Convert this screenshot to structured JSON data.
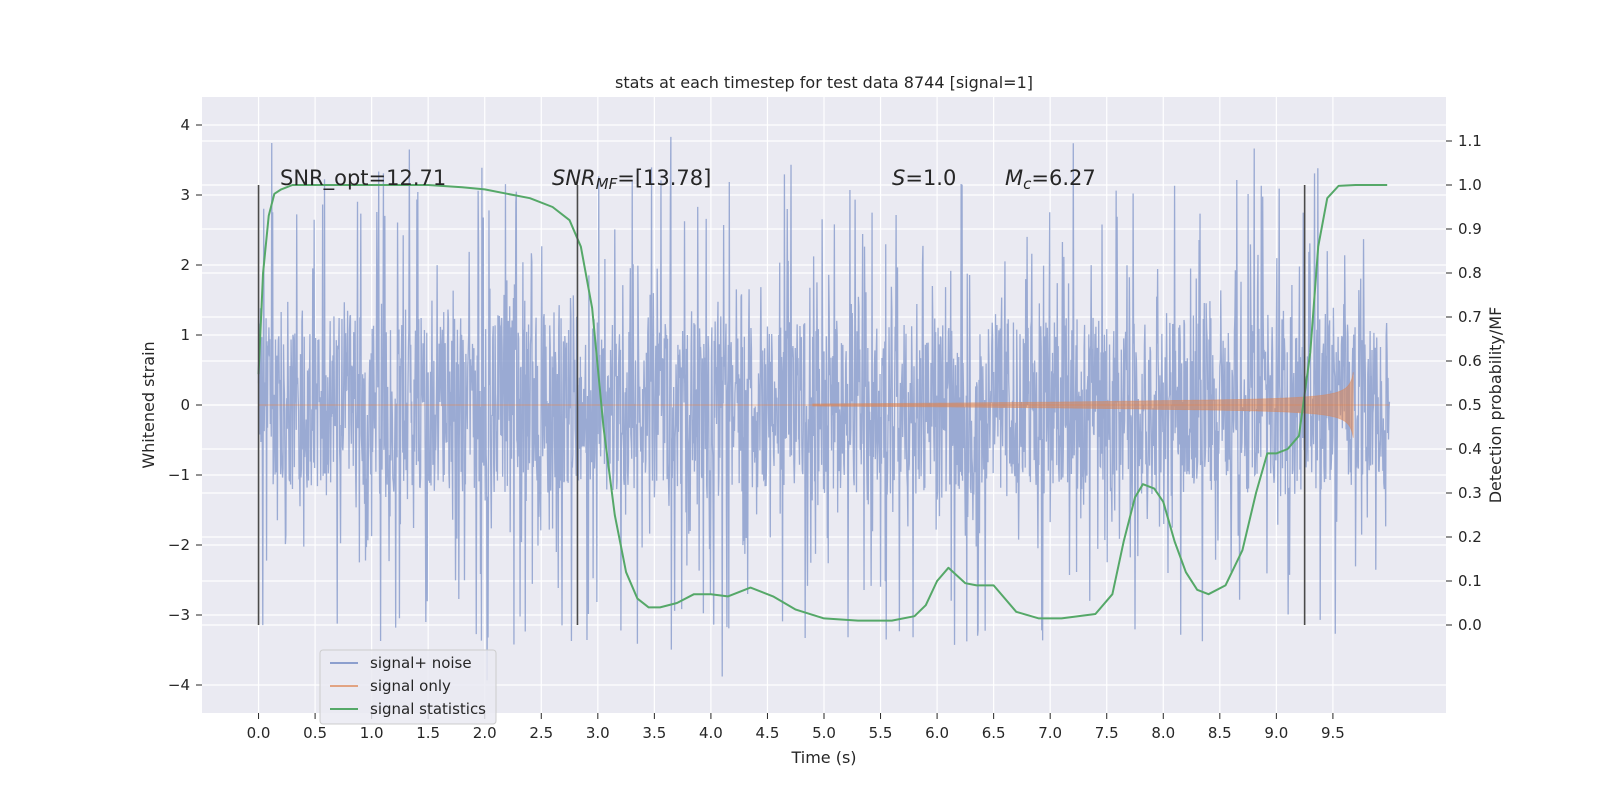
{
  "chart_data": {
    "type": "line",
    "title": "stats at each timestep for test data 8744 [signal=1]",
    "xlabel": "Time (s)",
    "ylabel_left": "Whitened strain",
    "ylabel_right": "Detection probability/MF",
    "xlim": [
      -0.5,
      10.5
    ],
    "ylim_left": [
      -4.4,
      4.4
    ],
    "ylim_right": [
      -0.2,
      1.2
    ],
    "x_ticks": [
      "0.0",
      "0.5",
      "1.0",
      "1.5",
      "2.0",
      "2.5",
      "3.0",
      "3.5",
      "4.0",
      "4.5",
      "5.0",
      "5.5",
      "6.0",
      "6.5",
      "7.0",
      "7.5",
      "8.0",
      "8.5",
      "9.0",
      "9.5"
    ],
    "y_ticks_left": [
      "4",
      "3",
      "2",
      "1",
      "0",
      "−1",
      "−2",
      "−3",
      "−4"
    ],
    "y_ticks_right": [
      "1.1",
      "1.0",
      "0.9",
      "0.8",
      "0.7",
      "0.6",
      "0.5",
      "0.4",
      "0.3",
      "0.2",
      "0.1",
      "0.0"
    ],
    "grid": true,
    "legend_position": "lower-left",
    "legend": [
      {
        "label": "signal+ noise",
        "color": "#8c9fce"
      },
      {
        "label": "signal only",
        "color": "#dd8452"
      },
      {
        "label": "signal statistics",
        "color": "#55a868"
      }
    ],
    "annotations": {
      "snr_opt": "SNR_opt=12.71",
      "snr_mf_main": "SNR",
      "snr_mf_sub": "MF",
      "snr_mf_value": "=[13.78]",
      "s_main": "S",
      "s_value": "=1.0",
      "mc_main": "M",
      "mc_sub": "c",
      "mc_value": "=6.27"
    },
    "vertical_markers": [
      0.0,
      2.82,
      9.25
    ],
    "series": [
      {
        "name": "signal+ noise",
        "x_range": [
          0.0,
          10.0
        ],
        "noise_amplitude": 1.25,
        "spike_extent": [
          -4.0,
          4.05
        ]
      },
      {
        "name": "signal only",
        "chirp_start": 4.9,
        "chirp_end": 9.68,
        "peak_amplitude": 1.4,
        "amplitude_at_9_5": 0.45,
        "amplitude_at_8_0": 0.2
      },
      {
        "name": "signal statistics",
        "axis": "right",
        "points": [
          [
            0.0,
            0.57
          ],
          [
            0.04,
            0.8
          ],
          [
            0.09,
            0.93
          ],
          [
            0.14,
            0.98
          ],
          [
            0.2,
            0.99
          ],
          [
            0.3,
            1.0
          ],
          [
            0.5,
            1.0
          ],
          [
            1.0,
            1.0
          ],
          [
            1.5,
            1.0
          ],
          [
            1.8,
            0.995
          ],
          [
            2.0,
            0.99
          ],
          [
            2.2,
            0.98
          ],
          [
            2.4,
            0.97
          ],
          [
            2.6,
            0.95
          ],
          [
            2.75,
            0.92
          ],
          [
            2.85,
            0.86
          ],
          [
            2.95,
            0.72
          ],
          [
            3.05,
            0.45
          ],
          [
            3.15,
            0.25
          ],
          [
            3.25,
            0.12
          ],
          [
            3.35,
            0.06
          ],
          [
            3.45,
            0.04
          ],
          [
            3.55,
            0.04
          ],
          [
            3.7,
            0.05
          ],
          [
            3.85,
            0.07
          ],
          [
            4.0,
            0.07
          ],
          [
            4.15,
            0.065
          ],
          [
            4.35,
            0.085
          ],
          [
            4.55,
            0.065
          ],
          [
            4.75,
            0.035
          ],
          [
            5.0,
            0.015
          ],
          [
            5.3,
            0.01
          ],
          [
            5.6,
            0.01
          ],
          [
            5.8,
            0.02
          ],
          [
            5.9,
            0.045
          ],
          [
            6.0,
            0.1
          ],
          [
            6.1,
            0.13
          ],
          [
            6.25,
            0.095
          ],
          [
            6.35,
            0.09
          ],
          [
            6.5,
            0.09
          ],
          [
            6.7,
            0.03
          ],
          [
            6.9,
            0.015
          ],
          [
            7.1,
            0.015
          ],
          [
            7.4,
            0.025
          ],
          [
            7.55,
            0.07
          ],
          [
            7.65,
            0.19
          ],
          [
            7.75,
            0.29
          ],
          [
            7.82,
            0.32
          ],
          [
            7.92,
            0.31
          ],
          [
            8.0,
            0.28
          ],
          [
            8.1,
            0.19
          ],
          [
            8.2,
            0.12
          ],
          [
            8.3,
            0.08
          ],
          [
            8.4,
            0.07
          ],
          [
            8.55,
            0.09
          ],
          [
            8.7,
            0.17
          ],
          [
            8.82,
            0.3
          ],
          [
            8.92,
            0.39
          ],
          [
            9.0,
            0.39
          ],
          [
            9.1,
            0.4
          ],
          [
            9.2,
            0.43
          ],
          [
            9.3,
            0.62
          ],
          [
            9.37,
            0.86
          ],
          [
            9.45,
            0.97
          ],
          [
            9.55,
            0.998
          ],
          [
            9.7,
            1.0
          ],
          [
            9.98,
            1.0
          ]
        ]
      }
    ]
  }
}
